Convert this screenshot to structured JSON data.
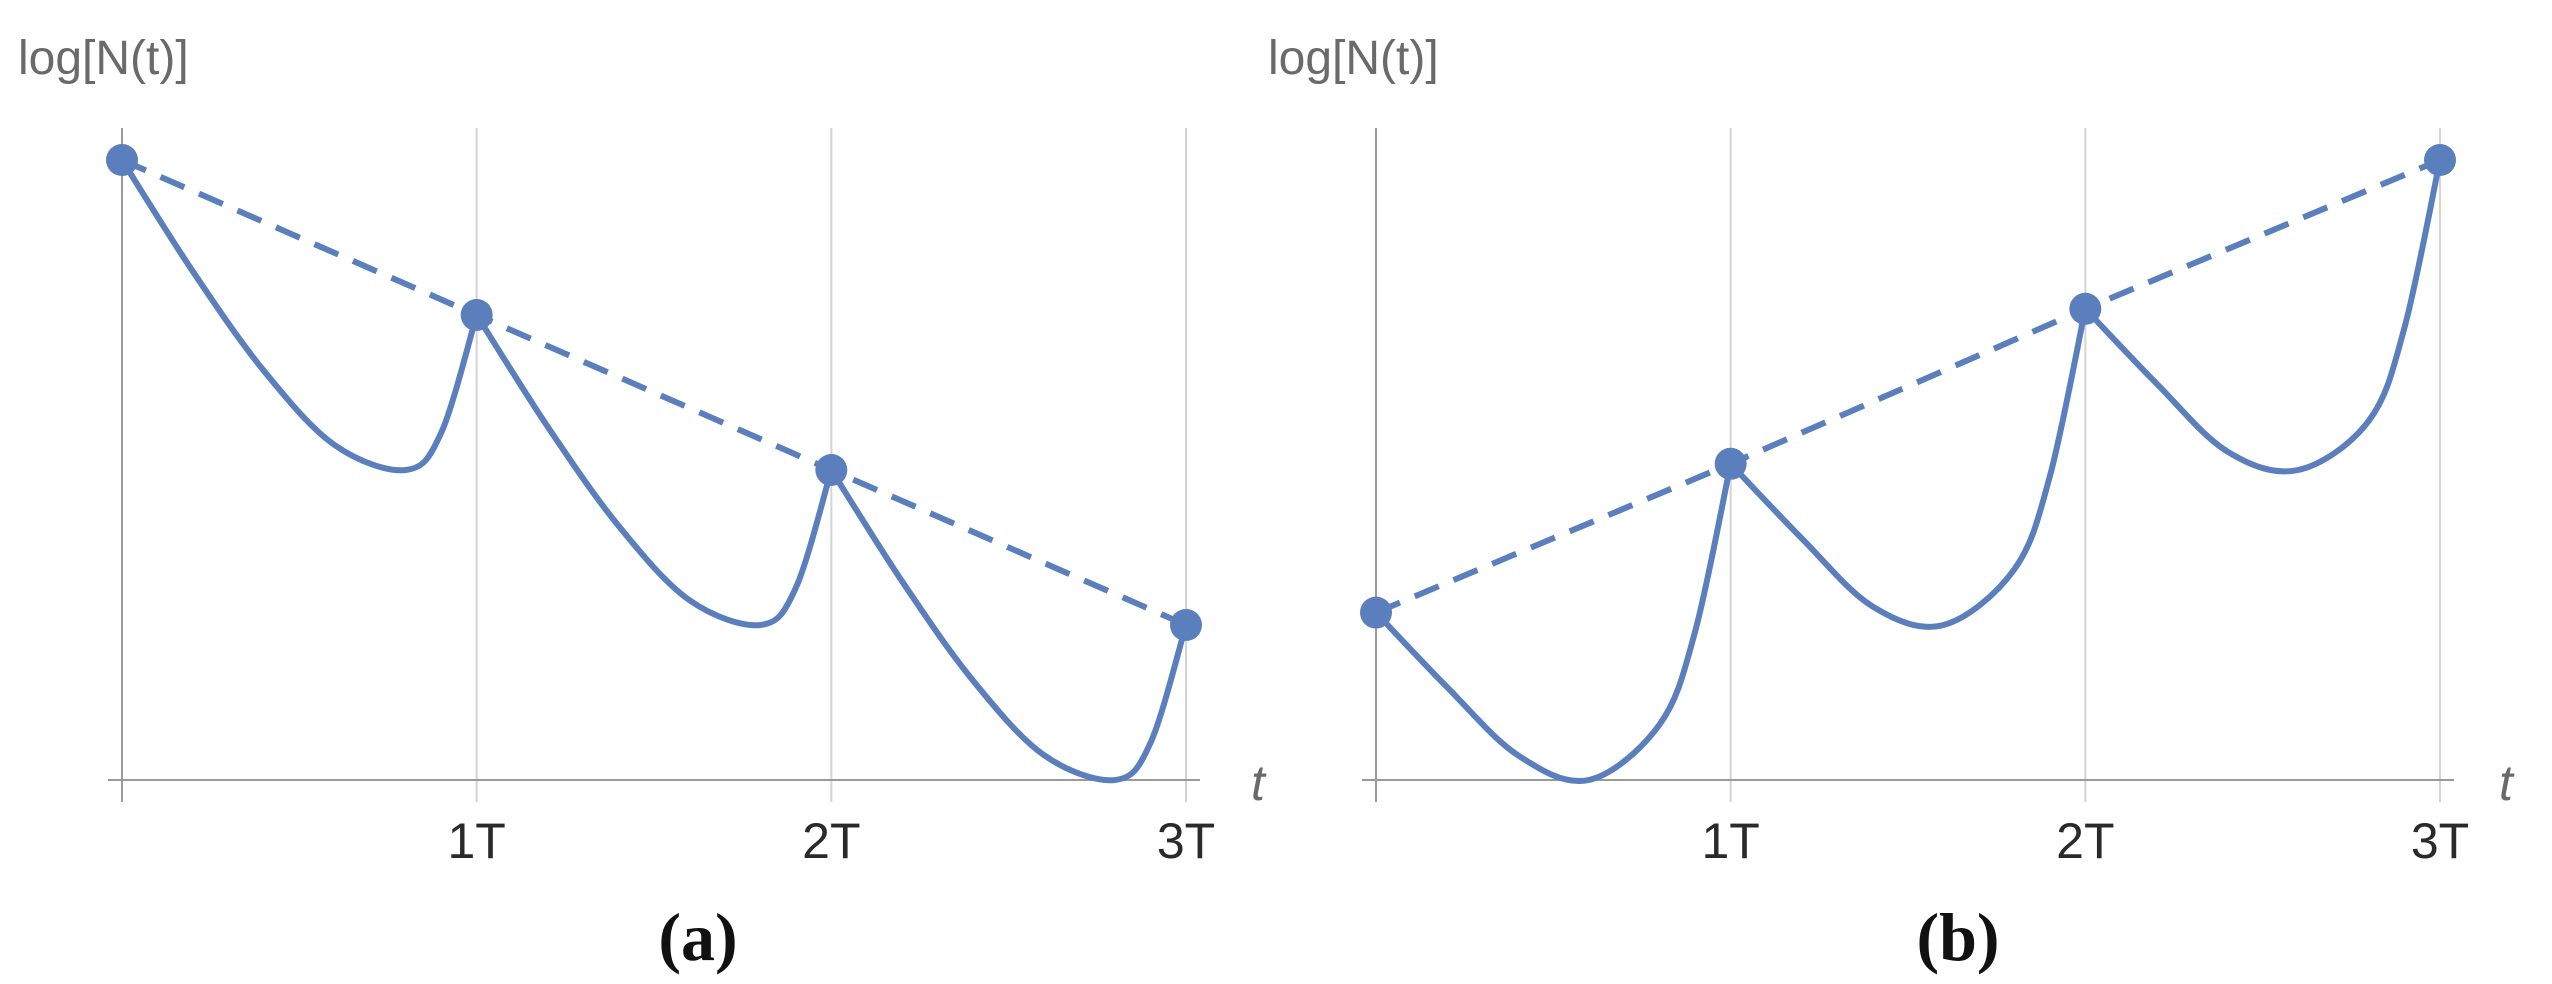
{
  "colors": {
    "series": "#5b7fbd",
    "axis": "#9a9a9a",
    "grid": "#d4d4d4"
  },
  "chart_data": [
    {
      "type": "line",
      "panel_label": "(a)",
      "ylabel": "log[N(t)]",
      "xlabel": "t",
      "x_ticks": [
        "",
        "1T",
        "2T",
        "3T"
      ],
      "xlim": [
        0,
        3
      ],
      "ylim": [
        0,
        1
      ],
      "grid": true,
      "series": [
        {
          "style": "dashed",
          "x": [
            0,
            1,
            2,
            3
          ],
          "y": [
            1.0,
            0.75,
            0.5,
            0.25
          ]
        },
        {
          "style": "solid",
          "segments": [
            {
              "x": [
                0,
                0.2,
                0.4,
                0.6,
                0.8,
                0.9,
                1.0
              ],
              "y": [
                1.0,
                0.82,
                0.66,
                0.54,
                0.5,
                0.56,
                0.75
              ]
            },
            {
              "x": [
                1.0,
                1.2,
                1.4,
                1.6,
                1.8,
                1.9,
                2.0
              ],
              "y": [
                0.75,
                0.57,
                0.41,
                0.29,
                0.25,
                0.31,
                0.5
              ]
            },
            {
              "x": [
                2.0,
                2.2,
                2.4,
                2.6,
                2.8,
                2.9,
                3.0
              ],
              "y": [
                0.5,
                0.32,
                0.16,
                0.04,
                0.0,
                0.06,
                0.25
              ]
            }
          ]
        },
        {
          "style": "markers",
          "x": [
            0,
            1,
            2,
            3
          ],
          "y": [
            1.0,
            0.75,
            0.5,
            0.25
          ]
        }
      ]
    },
    {
      "type": "line",
      "panel_label": "(b)",
      "ylabel": "log[N(t)]",
      "xlabel": "t",
      "x_ticks": [
        "",
        "1T",
        "2T",
        "3T"
      ],
      "xlim": [
        0,
        3
      ],
      "ylim": [
        0,
        1
      ],
      "grid": true,
      "series": [
        {
          "style": "dashed",
          "x": [
            0,
            1,
            2,
            3
          ],
          "y": [
            0.27,
            0.51,
            0.76,
            1.0
          ]
        },
        {
          "style": "solid",
          "segments": [
            {
              "x": [
                0,
                0.2,
                0.4,
                0.6,
                0.8,
                0.9,
                1.0
              ],
              "y": [
                0.27,
                0.15,
                0.04,
                0.0,
                0.09,
                0.24,
                0.51
              ]
            },
            {
              "x": [
                1.0,
                1.2,
                1.4,
                1.6,
                1.8,
                1.9,
                2.0
              ],
              "y": [
                0.51,
                0.39,
                0.28,
                0.25,
                0.34,
                0.49,
                0.76
              ]
            },
            {
              "x": [
                2.0,
                2.2,
                2.4,
                2.6,
                2.8,
                2.9,
                3.0
              ],
              "y": [
                0.76,
                0.64,
                0.53,
                0.5,
                0.58,
                0.73,
                1.0
              ]
            }
          ]
        },
        {
          "style": "markers",
          "x": [
            0,
            1,
            2,
            3
          ],
          "y": [
            0.27,
            0.51,
            0.76,
            1.0
          ]
        }
      ]
    }
  ]
}
